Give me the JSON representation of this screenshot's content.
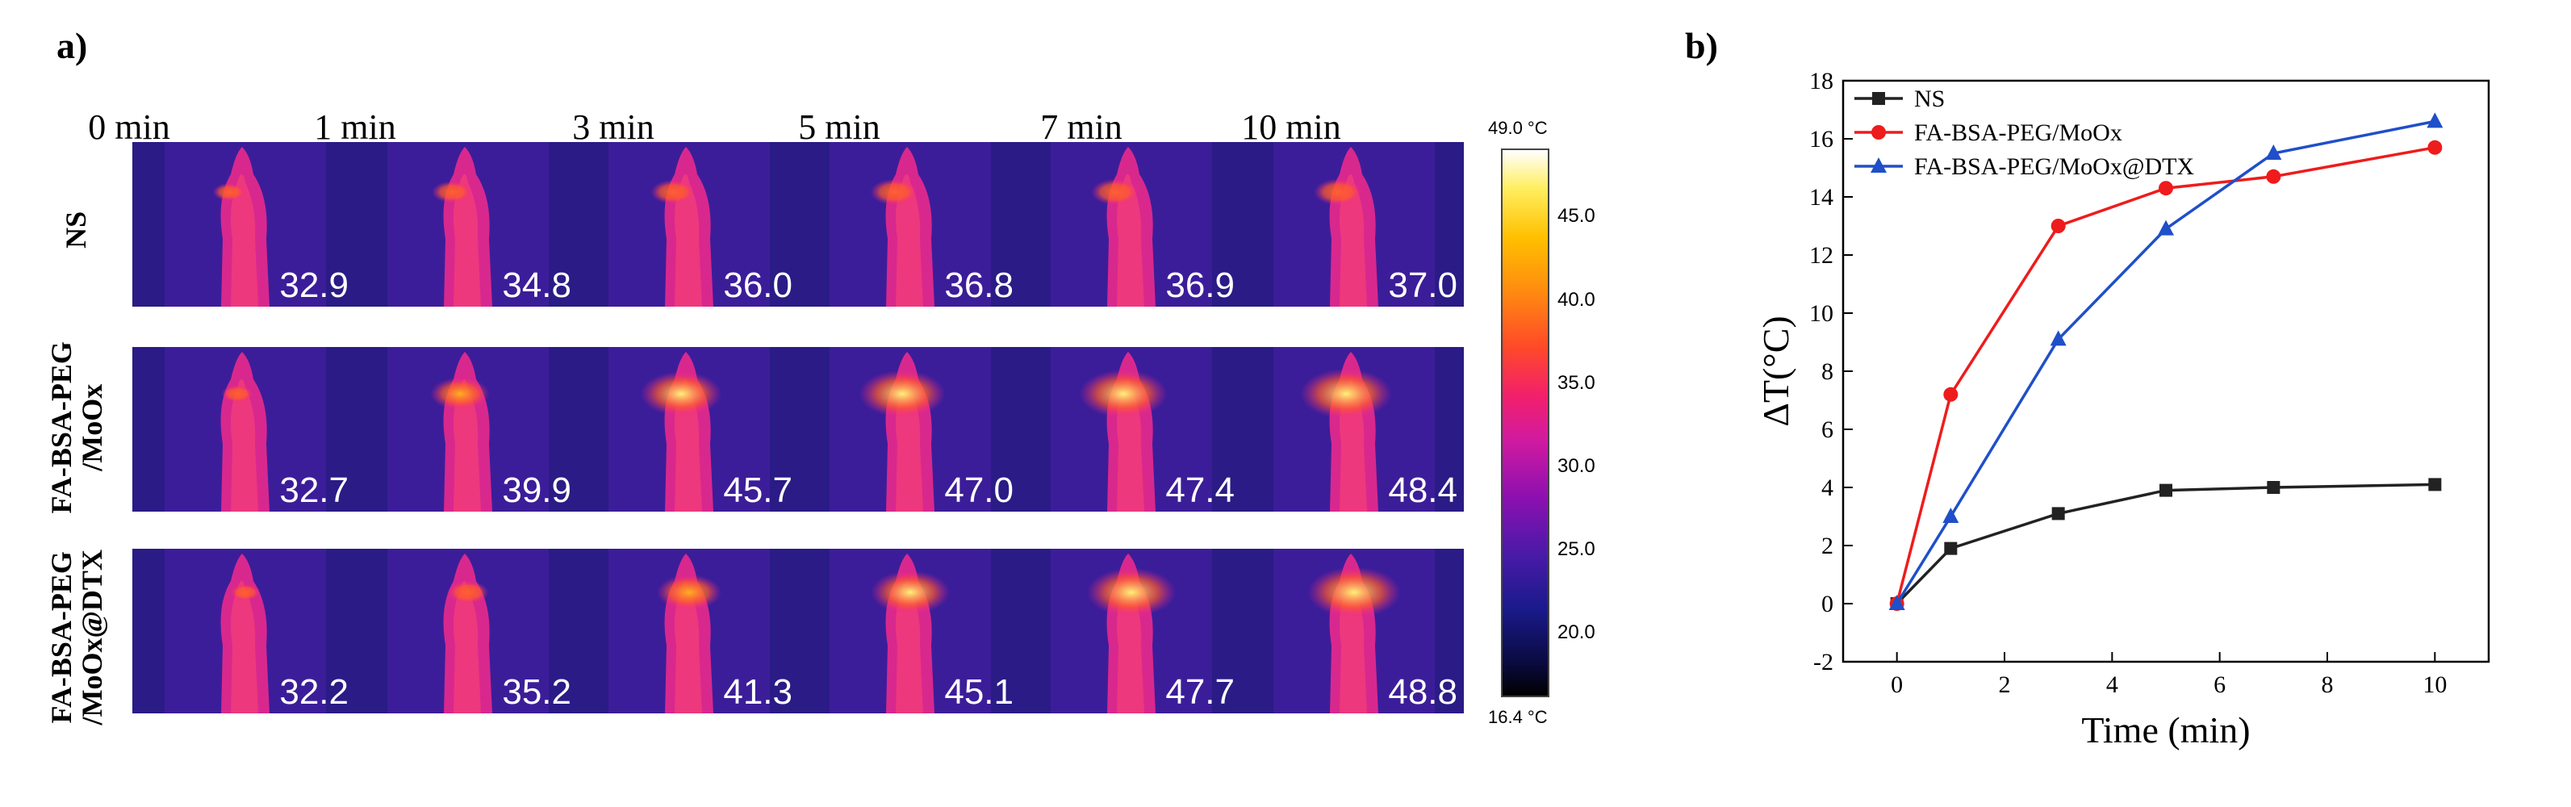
{
  "panel_a": {
    "label": "a)",
    "time_labels": [
      "0 min",
      "1 min",
      "3 min",
      "5 min",
      "7 min",
      "10 min"
    ],
    "rows": [
      {
        "label_line1": "NS",
        "label_line2": "",
        "temps": [
          "32.9",
          "34.8",
          "36.0",
          "36.8",
          "36.9",
          "37.0"
        ]
      },
      {
        "label_line1": "FA-BSA-PEG",
        "label_line2": "/MoOx",
        "temps": [
          "32.7",
          "39.9",
          "45.7",
          "47.0",
          "47.4",
          "48.4"
        ]
      },
      {
        "label_line1": "FA-BSA-PEG",
        "label_line2": "/MoOx@DTX",
        "temps": [
          "32.2",
          "35.2",
          "41.3",
          "45.1",
          "47.7",
          "48.8"
        ]
      }
    ],
    "colorbar": {
      "max_label": "49.0 °C",
      "min_label": "16.4 °C",
      "ticks": [
        "45.0",
        "40.0",
        "35.0",
        "30.0",
        "25.0",
        "20.0"
      ],
      "range": [
        16.4,
        49.0
      ]
    }
  },
  "panel_b": {
    "label": "b)"
  },
  "chart_data": {
    "type": "line",
    "xlabel": "Time (min)",
    "ylabel": "ΔT(°C)",
    "xlim": [
      -1,
      11
    ],
    "ylim": [
      -2,
      18
    ],
    "xticks": [
      0,
      2,
      4,
      6,
      8,
      10
    ],
    "yticks": [
      -2,
      0,
      2,
      4,
      6,
      8,
      10,
      12,
      14,
      16,
      18
    ],
    "x": [
      0,
      1,
      3,
      5,
      7,
      10
    ],
    "legend_position": "top-left",
    "series": [
      {
        "name": "NS",
        "color": "#222222",
        "marker": "square",
        "values": [
          0,
          1.9,
          3.1,
          3.9,
          4.0,
          4.1
        ]
      },
      {
        "name": "FA-BSA-PEG/MoOx",
        "color": "#ee1c1c",
        "marker": "circle",
        "values": [
          0,
          7.2,
          13.0,
          14.3,
          14.7,
          15.7
        ]
      },
      {
        "name": "FA-BSA-PEG/MoOx@DTX",
        "color": "#1f4fc9",
        "marker": "triangle",
        "values": [
          0,
          3.0,
          9.1,
          12.9,
          15.5,
          16.6
        ]
      }
    ]
  }
}
